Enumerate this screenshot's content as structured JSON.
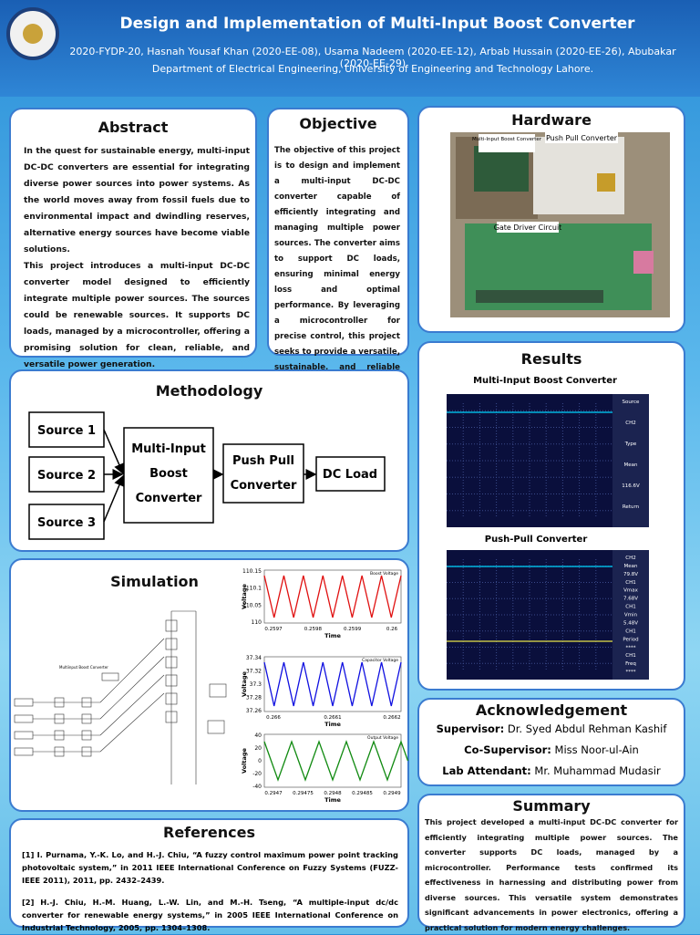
{
  "header": {
    "title": "Design and Implementation of Multi-Input Boost Converter",
    "authors": "2020-FYDP-20, Hasnah Yousaf Khan (2020-EE-08), Usama Nadeem (2020-EE-12), Arbab Hussain (2020-EE-26), Abubakar (2020-EE-29)",
    "department": "Department of Electrical Engineering, University of Engineering and Technology Lahore."
  },
  "abstract": {
    "title": "Abstract",
    "paragraphs": [
      "In the quest for sustainable energy, multi-input DC-DC converters are essential for integrating diverse power sources into power systems. As the world moves away from fossil fuels due to environmental impact and dwindling reserves, alternative energy sources have become viable solutions.",
      "This project introduces a multi-input DC-DC converter model designed to efficiently integrate multiple power sources. The sources could be renewable sources. It supports DC loads, managed by a microcontroller, offering a promising solution for clean, reliable, and versatile power generation."
    ]
  },
  "objective": {
    "title": "Objective",
    "text": "The objective of this project is to design and implement a multi-input DC-DC converter capable of efficiently integrating and managing multiple power sources. The converter aims to support DC loads, ensuring minimal energy loss and optimal performance. By leveraging a microcontroller for precise control, this project seeks to provide a versatile, sustainable, and reliable solution for modern power generation needs."
  },
  "hardware": {
    "title": "Hardware",
    "photo_labels": [
      "Multi-Input Boost Converter",
      "Push Pull Converter",
      "Gate Driver Circuit"
    ]
  },
  "methodology": {
    "title": "Methodology",
    "nodes": [
      {
        "label": "Source 1"
      },
      {
        "label": "Source 2"
      },
      {
        "label": "Source 3"
      },
      {
        "label": "Multi-Input Boost Converter"
      },
      {
        "label": "Push Pull Converter"
      },
      {
        "label": "DC Load"
      }
    ]
  },
  "results": {
    "title": "Results",
    "scopes": [
      {
        "caption": "Multi-Input Boost Converter",
        "side_labels": [
          "Source",
          "CH2",
          "Type",
          "Mean",
          "116.6V",
          "Return"
        ]
      },
      {
        "caption": "Push-Pull Converter",
        "side_labels": [
          "CH2",
          "Mean",
          "79.8V",
          "CH1",
          "Vmax",
          "7.68V",
          "CH1",
          "Vmin",
          "5.48V",
          "CH1",
          "Period",
          "****",
          "CH1",
          "Freq",
          "****"
        ]
      }
    ]
  },
  "simulation": {
    "title": "Simulation",
    "diagram_label": "Multiinput Boost Converter",
    "plots": [
      {
        "legend": "Boost Voltage",
        "ylabel": "Voltage",
        "xlabel": "Time",
        "yticks": [
          "110.15",
          "110.1",
          "110.05",
          "110"
        ],
        "xticks": [
          "0.2597",
          "0.2598",
          "0.2599",
          "0.26"
        ]
      },
      {
        "legend": "Capacitor Voltage",
        "ylabel": "Voltage",
        "xlabel": "Time",
        "yticks": [
          "37.34",
          "37.32",
          "37.3",
          "37.28",
          "37.26"
        ],
        "xticks": [
          "0.266",
          "0.2661",
          "0.2662"
        ]
      },
      {
        "legend": "Output Voltage",
        "ylabel": "Voltage",
        "xlabel": "Time",
        "yticks": [
          "40",
          "20",
          "0",
          "-20",
          "-40"
        ],
        "xticks": [
          "0.2947",
          "0.29475",
          "0.2948",
          "0.29485",
          "0.2949"
        ]
      }
    ]
  },
  "references": {
    "title": "References",
    "items": [
      "[1] I. Purnama, Y.-K. Lo, and H.-J. Chiu, “A fuzzy control maximum power point tracking photovoltaic system,” in 2011 IEEE International Conference on Fuzzy Systems (FUZZ-IEEE 2011), 2011, pp. 2432–2439.",
      "[2] H.-J. Chiu, H.-M. Huang, L.-W. Lin, and M.-H. Tseng, “A multiple-input dc/dc converter for renewable energy systems,” in 2005 IEEE International Conference on Industrial Technology, 2005, pp. 1304–1308."
    ]
  },
  "acknowledgement": {
    "title": "Acknowledgement",
    "rows": [
      {
        "role": "Supervisor:",
        "name": "Dr. Syed Abdul Rehman Kashif"
      },
      {
        "role": "Co-Supervisor:",
        "name": "Miss Noor-ul-Ain"
      },
      {
        "role": "Lab Attendant:",
        "name": "Mr. Muhammad Mudasir"
      }
    ]
  },
  "summary": {
    "title": "Summary",
    "text": "This project developed a multi-input DC-DC converter for efficiently integrating multiple power sources. The converter supports DC loads, managed by a microcontroller. Performance tests confirmed its effectiveness in harnessing and distributing power from diverse sources. This versatile system demonstrates significant advancements in power electronics, offering a practical solution for modern energy challenges."
  }
}
